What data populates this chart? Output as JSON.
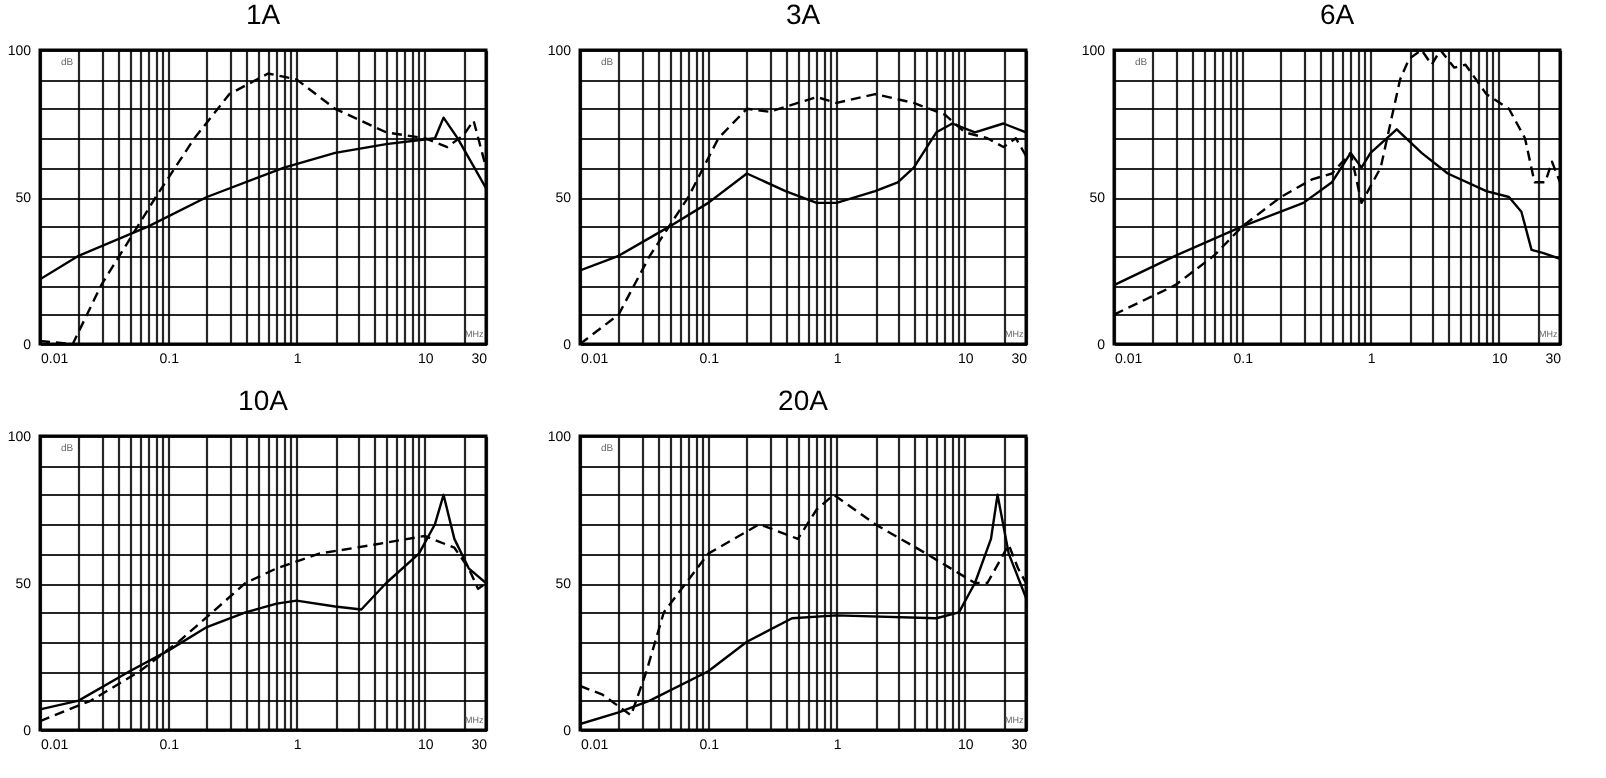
{
  "chart_data": [
    {
      "type": "line",
      "title": "1A",
      "xlabel": "MHz",
      "ylabel": "dB",
      "log": "x",
      "grid": true,
      "xlim": [
        0.01,
        30
      ],
      "ylim": [
        0,
        100
      ],
      "xticks": [
        0.01,
        {
          "value": 0.02,
          "label": null
        },
        {
          "value": 0.03,
          "label": null
        },
        {
          "value": 0.04,
          "label": null
        },
        {
          "value": 0.05,
          "label": null
        },
        {
          "value": 0.06,
          "label": null
        },
        {
          "value": 0.07,
          "label": null
        },
        {
          "value": 0.08,
          "label": null
        },
        {
          "value": 0.09,
          "label": null
        },
        0.1,
        {
          "value": 0.2,
          "label": null
        },
        {
          "value": 0.3,
          "label": null
        },
        {
          "value": 0.4,
          "label": null
        },
        {
          "value": 0.5,
          "label": null
        },
        {
          "value": 0.6,
          "label": null
        },
        {
          "value": 0.7,
          "label": null
        },
        {
          "value": 0.8,
          "label": null
        },
        {
          "value": 0.9,
          "label": null
        },
        1,
        {
          "value": 2,
          "label": null
        },
        {
          "value": 3,
          "label": null
        },
        {
          "value": 4,
          "label": null
        },
        {
          "value": 5,
          "label": null
        },
        {
          "value": 6,
          "label": null
        },
        {
          "value": 7,
          "label": null
        },
        {
          "value": 8,
          "label": null
        },
        {
          "value": 9,
          "label": null
        },
        10,
        {
          "value": 20,
          "label": null
        },
        30
      ],
      "yticks": [
        0,
        {
          "value": 10,
          "label": null
        },
        {
          "value": 20,
          "label": null
        },
        {
          "value": 30,
          "label": null
        },
        {
          "value": 40,
          "label": null
        },
        50,
        {
          "value": 60,
          "label": null
        },
        {
          "value": 70,
          "label": null
        },
        {
          "value": 80,
          "label": null
        },
        {
          "value": 90,
          "label": null
        },
        100
      ],
      "series": [
        {
          "color": "#000000",
          "line_style": "solid",
          "x": [
            0.01,
            0.02,
            0.07,
            0.2,
            0.8,
            2,
            5,
            12,
            14,
            18,
            30
          ],
          "values": [
            22,
            30,
            40,
            50,
            60,
            65,
            68,
            70,
            77,
            70,
            53
          ]
        },
        {
          "color": "#000000",
          "line_style": "dashed",
          "x": [
            0.01,
            0.018,
            0.03,
            0.08,
            0.16,
            0.3,
            0.6,
            1,
            2,
            5,
            10,
            15,
            20,
            24,
            28,
            30
          ],
          "values": [
            1,
            0,
            20,
            50,
            70,
            85,
            92,
            90,
            80,
            72,
            70,
            67,
            71,
            76,
            65,
            60
          ]
        }
      ]
    },
    {
      "type": "line",
      "title": "3A",
      "xlabel": "MHz",
      "ylabel": "dB",
      "log": "x",
      "grid": true,
      "xlim": [
        0.01,
        30
      ],
      "ylim": [
        0,
        100
      ],
      "xticks": [
        0.01,
        {
          "value": 0.02,
          "label": null
        },
        {
          "value": 0.03,
          "label": null
        },
        {
          "value": 0.04,
          "label": null
        },
        {
          "value": 0.05,
          "label": null
        },
        {
          "value": 0.06,
          "label": null
        },
        {
          "value": 0.07,
          "label": null
        },
        {
          "value": 0.08,
          "label": null
        },
        {
          "value": 0.09,
          "label": null
        },
        0.1,
        {
          "value": 0.2,
          "label": null
        },
        {
          "value": 0.3,
          "label": null
        },
        {
          "value": 0.4,
          "label": null
        },
        {
          "value": 0.5,
          "label": null
        },
        {
          "value": 0.6,
          "label": null
        },
        {
          "value": 0.7,
          "label": null
        },
        {
          "value": 0.8,
          "label": null
        },
        {
          "value": 0.9,
          "label": null
        },
        1,
        {
          "value": 2,
          "label": null
        },
        {
          "value": 3,
          "label": null
        },
        {
          "value": 4,
          "label": null
        },
        {
          "value": 5,
          "label": null
        },
        {
          "value": 6,
          "label": null
        },
        {
          "value": 7,
          "label": null
        },
        {
          "value": 8,
          "label": null
        },
        {
          "value": 9,
          "label": null
        },
        10,
        {
          "value": 20,
          "label": null
        },
        30
      ],
      "yticks": [
        0,
        {
          "value": 10,
          "label": null
        },
        {
          "value": 20,
          "label": null
        },
        {
          "value": 30,
          "label": null
        },
        {
          "value": 40,
          "label": null
        },
        50,
        {
          "value": 60,
          "label": null
        },
        {
          "value": 70,
          "label": null
        },
        {
          "value": 80,
          "label": null
        },
        {
          "value": 90,
          "label": null
        },
        100
      ],
      "series": [
        {
          "color": "#000000",
          "line_style": "solid",
          "x": [
            0.01,
            0.02,
            0.05,
            0.1,
            0.2,
            0.4,
            0.7,
            1,
            2,
            3,
            4,
            6,
            8,
            12,
            20,
            30
          ],
          "values": [
            25,
            30,
            40,
            48,
            58,
            52,
            48,
            48,
            52,
            55,
            60,
            72,
            75,
            72,
            75,
            72
          ]
        },
        {
          "color": "#000000",
          "line_style": "dashed",
          "x": [
            0.01,
            0.02,
            0.035,
            0.07,
            0.12,
            0.2,
            0.3,
            0.5,
            0.7,
            1,
            2,
            4,
            7,
            10,
            15,
            20,
            25,
            30
          ],
          "values": [
            0,
            10,
            30,
            50,
            70,
            80,
            79,
            82,
            84,
            82,
            85,
            82,
            78,
            72,
            70,
            67,
            70,
            64
          ]
        }
      ]
    },
    {
      "type": "line",
      "title": "6A",
      "xlabel": "MHz",
      "ylabel": "dB",
      "log": "x",
      "grid": true,
      "xlim": [
        0.01,
        30
      ],
      "ylim": [
        0,
        100
      ],
      "xticks": [
        0.01,
        {
          "value": 0.02,
          "label": null
        },
        {
          "value": 0.03,
          "label": null
        },
        {
          "value": 0.04,
          "label": null
        },
        {
          "value": 0.05,
          "label": null
        },
        {
          "value": 0.06,
          "label": null
        },
        {
          "value": 0.07,
          "label": null
        },
        {
          "value": 0.08,
          "label": null
        },
        {
          "value": 0.09,
          "label": null
        },
        0.1,
        {
          "value": 0.2,
          "label": null
        },
        {
          "value": 0.3,
          "label": null
        },
        {
          "value": 0.4,
          "label": null
        },
        {
          "value": 0.5,
          "label": null
        },
        {
          "value": 0.6,
          "label": null
        },
        {
          "value": 0.7,
          "label": null
        },
        {
          "value": 0.8,
          "label": null
        },
        {
          "value": 0.9,
          "label": null
        },
        1,
        {
          "value": 2,
          "label": null
        },
        {
          "value": 3,
          "label": null
        },
        {
          "value": 4,
          "label": null
        },
        {
          "value": 5,
          "label": null
        },
        {
          "value": 6,
          "label": null
        },
        {
          "value": 7,
          "label": null
        },
        {
          "value": 8,
          "label": null
        },
        {
          "value": 9,
          "label": null
        },
        10,
        {
          "value": 20,
          "label": null
        },
        30
      ],
      "yticks": [
        0,
        {
          "value": 10,
          "label": null
        },
        {
          "value": 20,
          "label": null
        },
        {
          "value": 30,
          "label": null
        },
        {
          "value": 40,
          "label": null
        },
        50,
        {
          "value": 60,
          "label": null
        },
        {
          "value": 70,
          "label": null
        },
        {
          "value": 80,
          "label": null
        },
        {
          "value": 90,
          "label": null
        },
        100
      ],
      "series": [
        {
          "color": "#000000",
          "line_style": "solid",
          "x": [
            0.01,
            0.03,
            0.1,
            0.3,
            0.5,
            0.7,
            0.85,
            1,
            1.6,
            2.5,
            4,
            8,
            12,
            15,
            18,
            22,
            30
          ],
          "values": [
            20,
            30,
            40,
            48,
            55,
            65,
            60,
            65,
            73,
            65,
            58,
            52,
            50,
            45,
            32,
            31,
            29
          ]
        },
        {
          "color": "#000000",
          "line_style": "dashed",
          "x": [
            0.01,
            0.03,
            0.06,
            0.1,
            0.2,
            0.35,
            0.5,
            0.7,
            0.85,
            1.2,
            1.7,
            2,
            2.5,
            3,
            3.5,
            4.5,
            5.5,
            8,
            12,
            16,
            19,
            23,
            26,
            30
          ],
          "values": [
            10,
            20,
            30,
            40,
            50,
            56,
            58,
            65,
            48,
            60,
            90,
            97,
            100,
            95,
            100,
            94,
            95,
            85,
            80,
            70,
            55,
            55,
            62,
            55
          ]
        }
      ]
    },
    {
      "type": "line",
      "title": "10A",
      "xlabel": "MHz",
      "ylabel": "dB",
      "log": "x",
      "grid": true,
      "xlim": [
        0.01,
        30
      ],
      "ylim": [
        0,
        100
      ],
      "xticks": [
        0.01,
        {
          "value": 0.02,
          "label": null
        },
        {
          "value": 0.03,
          "label": null
        },
        {
          "value": 0.04,
          "label": null
        },
        {
          "value": 0.05,
          "label": null
        },
        {
          "value": 0.06,
          "label": null
        },
        {
          "value": 0.07,
          "label": null
        },
        {
          "value": 0.08,
          "label": null
        },
        {
          "value": 0.09,
          "label": null
        },
        0.1,
        {
          "value": 0.2,
          "label": null
        },
        {
          "value": 0.3,
          "label": null
        },
        {
          "value": 0.4,
          "label": null
        },
        {
          "value": 0.5,
          "label": null
        },
        {
          "value": 0.6,
          "label": null
        },
        {
          "value": 0.7,
          "label": null
        },
        {
          "value": 0.8,
          "label": null
        },
        {
          "value": 0.9,
          "label": null
        },
        1,
        {
          "value": 2,
          "label": null
        },
        {
          "value": 3,
          "label": null
        },
        {
          "value": 4,
          "label": null
        },
        {
          "value": 5,
          "label": null
        },
        {
          "value": 6,
          "label": null
        },
        {
          "value": 7,
          "label": null
        },
        {
          "value": 8,
          "label": null
        },
        {
          "value": 9,
          "label": null
        },
        10,
        {
          "value": 20,
          "label": null
        },
        30
      ],
      "yticks": [
        0,
        {
          "value": 10,
          "label": null
        },
        {
          "value": 20,
          "label": null
        },
        {
          "value": 30,
          "label": null
        },
        {
          "value": 40,
          "label": null
        },
        50,
        {
          "value": 60,
          "label": null
        },
        {
          "value": 70,
          "label": null
        },
        {
          "value": 80,
          "label": null
        },
        {
          "value": 90,
          "label": null
        },
        100
      ],
      "series": [
        {
          "color": "#000000",
          "line_style": "solid",
          "x": [
            0.01,
            0.02,
            0.05,
            0.1,
            0.2,
            0.4,
            0.7,
            1,
            2,
            3.2,
            5,
            9,
            12,
            14,
            17,
            22,
            30
          ],
          "values": [
            7,
            10,
            20,
            27,
            35,
            40,
            43,
            44,
            42,
            41,
            50,
            60,
            70,
            80,
            65,
            55,
            50
          ]
        },
        {
          "color": "#000000",
          "line_style": "dashed",
          "x": [
            0.01,
            0.025,
            0.06,
            0.12,
            0.22,
            0.4,
            0.7,
            1.5,
            4,
            10,
            17,
            22,
            26,
            30
          ],
          "values": [
            3,
            10,
            20,
            30,
            40,
            50,
            55,
            60,
            63,
            66,
            62,
            55,
            48,
            50
          ]
        }
      ]
    },
    {
      "type": "line",
      "title": "20A",
      "xlabel": "MHz",
      "ylabel": "dB",
      "log": "x",
      "grid": true,
      "xlim": [
        0.01,
        30
      ],
      "ylim": [
        0,
        100
      ],
      "xticks": [
        0.01,
        {
          "value": 0.02,
          "label": null
        },
        {
          "value": 0.03,
          "label": null
        },
        {
          "value": 0.04,
          "label": null
        },
        {
          "value": 0.05,
          "label": null
        },
        {
          "value": 0.06,
          "label": null
        },
        {
          "value": 0.07,
          "label": null
        },
        {
          "value": 0.08,
          "label": null
        },
        {
          "value": 0.09,
          "label": null
        },
        0.1,
        {
          "value": 0.2,
          "label": null
        },
        {
          "value": 0.3,
          "label": null
        },
        {
          "value": 0.4,
          "label": null
        },
        {
          "value": 0.5,
          "label": null
        },
        {
          "value": 0.6,
          "label": null
        },
        {
          "value": 0.7,
          "label": null
        },
        {
          "value": 0.8,
          "label": null
        },
        {
          "value": 0.9,
          "label": null
        },
        1,
        {
          "value": 2,
          "label": null
        },
        {
          "value": 3,
          "label": null
        },
        {
          "value": 4,
          "label": null
        },
        {
          "value": 5,
          "label": null
        },
        {
          "value": 6,
          "label": null
        },
        {
          "value": 7,
          "label": null
        },
        {
          "value": 8,
          "label": null
        },
        {
          "value": 9,
          "label": null
        },
        10,
        {
          "value": 20,
          "label": null
        },
        30
      ],
      "yticks": [
        0,
        {
          "value": 10,
          "label": null
        },
        {
          "value": 20,
          "label": null
        },
        {
          "value": 30,
          "label": null
        },
        {
          "value": 40,
          "label": null
        },
        50,
        {
          "value": 60,
          "label": null
        },
        {
          "value": 70,
          "label": null
        },
        {
          "value": 80,
          "label": null
        },
        {
          "value": 90,
          "label": null
        },
        100
      ],
      "series": [
        {
          "color": "#000000",
          "line_style": "solid",
          "x": [
            0.01,
            0.02,
            0.035,
            0.1,
            0.2,
            0.45,
            1,
            6,
            9,
            12,
            16,
            18,
            22,
            30
          ],
          "values": [
            2,
            6,
            10,
            20,
            30,
            38,
            39,
            38,
            40,
            50,
            65,
            80,
            60,
            45
          ]
        },
        {
          "color": "#000000",
          "line_style": "dashed",
          "x": [
            0.01,
            0.015,
            0.025,
            0.033,
            0.045,
            0.1,
            0.25,
            0.5,
            0.7,
            0.95,
            2,
            5,
            12,
            15,
            22,
            26,
            30
          ],
          "values": [
            15,
            12,
            5,
            20,
            40,
            60,
            70,
            65,
            75,
            80,
            70,
            60,
            50,
            50,
            63,
            55,
            50
          ]
        }
      ]
    }
  ]
}
